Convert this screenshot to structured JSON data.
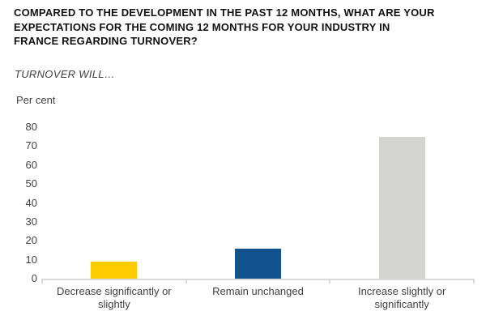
{
  "title": "COMPARED TO THE DEVELOPMENT IN THE PAST 12 MONTHS, WHAT ARE YOUR EXPECTATIONS FOR THE COMING 12 MONTHS FOR YOUR INDUSTRY IN FRANCE REGARDING TURNOVER?",
  "title_lines": [
    "COMPARED TO THE DEVELOPMENT IN THE PAST 12 MONTHS, WHAT ARE YOUR",
    "EXPECTATIONS FOR THE COMING 12 MONTHS FOR YOUR INDUSTRY IN",
    "FRANCE REGARDING TURNOVER?"
  ],
  "subtitle": "TURNOVER WILL…",
  "y_axis_unit_label": "Per cent",
  "colors": {
    "background": "#FFFFFF",
    "title_text": "#111111",
    "body_text": "#3F3F3F",
    "axis_line": "#D9D9D9",
    "bar_decrease": "#FFCC00",
    "bar_unchanged": "#10538F",
    "bar_increase": "#D4D4D0"
  },
  "chart_data": {
    "type": "bar",
    "categories": [
      "Decrease significantly or slightly",
      "Remain unchanged",
      "Increase slightly or significantly"
    ],
    "values": [
      9,
      16,
      75
    ],
    "bar_colors": [
      "#FFCC00",
      "#10538F",
      "#D4D4D0"
    ],
    "title": "COMPARED TO THE DEVELOPMENT IN THE PAST 12 MONTHS, WHAT ARE YOUR EXPECTATIONS FOR THE COMING 12 MONTHS FOR YOUR INDUSTRY IN FRANCE REGARDING TURNOVER?",
    "subtitle": "TURNOVER WILL…",
    "xlabel": "",
    "ylabel": "Per cent",
    "ylim": [
      0,
      80
    ],
    "yticks": [
      0,
      10,
      20,
      30,
      40,
      50,
      60,
      70,
      80
    ],
    "ytick_step": 10,
    "grid": false,
    "legend": "none"
  }
}
